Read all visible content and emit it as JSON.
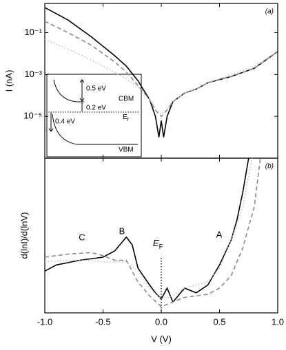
{
  "chart_data": [
    {
      "type": "line",
      "panel_label": "(a)",
      "ylabel": "I (nA)",
      "log_y": true,
      "xlim": [
        -1,
        1
      ],
      "ylim": [
        1e-07,
        2.5
      ],
      "yticks": [
        {
          "value": 0.1,
          "label": "10⁻¹"
        },
        {
          "value": 0.001,
          "label": "10⁻³"
        },
        {
          "value": 1e-05,
          "label": "10⁻⁵"
        }
      ],
      "x": [
        -1,
        -0.8,
        -0.6,
        -0.4,
        -0.3,
        -0.2,
        -0.1,
        -0.05,
        -0.02,
        0,
        0.02,
        0.05,
        0.1,
        0.2,
        0.3,
        0.4,
        0.6,
        0.8,
        1.0
      ],
      "series": [
        {
          "color": "#000000",
          "dash": "solid",
          "values": [
            1.6,
            0.4,
            0.063,
            0.0079,
            0.0025,
            0.0005,
            6.3e-05,
            1e-05,
            1e-06,
            6.3e-06,
            1e-06,
            1e-05,
            5e-05,
            0.00013,
            0.0002,
            0.0004,
            0.0008,
            0.002,
            0.0126
          ]
        },
        {
          "color": "#8a8a8a",
          "dash": "dashed",
          "values": [
            0.35,
            0.1,
            0.025,
            0.004,
            0.0013,
            0.0003,
            6.3e-05,
            2e-05,
            1.26e-05,
            1e-05,
            1.26e-05,
            2e-05,
            5e-05,
            0.00013,
            0.0002,
            0.0004,
            0.0008,
            0.002,
            0.0126
          ]
        },
        {
          "color": "#bdbdbd",
          "dash": "dotted",
          "values": [
            0.05,
            0.016,
            0.005,
            0.0013,
            0.00063,
            0.00025,
            6.3e-05,
            2.5e-05,
            1.6e-05,
            1.26e-05,
            1.6e-05,
            2.5e-05,
            5e-05,
            0.00013,
            0.0002,
            0.0004,
            0.001,
            0.0025,
            0.0126
          ]
        }
      ],
      "inset": {
        "gap_cbm": "0.5 eV",
        "cbm": "CBM",
        "gap_ef": "0.2 eV",
        "ef": {
          "text": "E",
          "sub": "f"
        },
        "gap_vbm": "0.4 eV",
        "vbm": "VBM"
      }
    },
    {
      "type": "line",
      "panel_label": "(b)",
      "ylabel": "d(lnI)/d(lnV)",
      "xlabel": "V (V)",
      "xlim": [
        -1,
        1
      ],
      "ylim": [
        0,
        10
      ],
      "xticks": [
        {
          "value": -1,
          "label": "-1.0"
        },
        -0.5,
        {
          "value": 0,
          "label": "0.0"
        },
        0.5,
        {
          "value": 1,
          "label": "1.0"
        }
      ],
      "series": [
        {
          "color": "#000000",
          "dash": "solid",
          "x": [
            -1,
            -0.9,
            -0.7,
            -0.5,
            -0.4,
            -0.3,
            -0.25,
            -0.2,
            -0.1,
            -0.05,
            0,
            0.05,
            0.1,
            0.2,
            0.3,
            0.4,
            0.5,
            0.6,
            0.65,
            0.7,
            0.75
          ],
          "values": [
            2.7,
            3.1,
            3.4,
            3.6,
            4.0,
            4.9,
            4.4,
            2.9,
            1.8,
            1.3,
            0.9,
            1.6,
            0.7,
            1.6,
            1.3,
            1.8,
            3.1,
            4.7,
            6.0,
            7.8,
            10.0
          ]
        },
        {
          "color": "#8a8a8a",
          "dash": "dashed",
          "x": [
            -1,
            -0.8,
            -0.6,
            -0.5,
            -0.4,
            -0.3,
            -0.2,
            -0.1,
            0,
            0.1,
            0.2,
            0.3,
            0.4,
            0.5,
            0.6,
            0.7,
            0.8,
            0.85
          ],
          "values": [
            3.6,
            3.8,
            3.9,
            3.7,
            3.4,
            3.4,
            2.0,
            1.1,
            0.4,
            0.7,
            1.0,
            1.1,
            1.2,
            1.6,
            2.4,
            4.2,
            6.9,
            10.0
          ]
        },
        {
          "color": "#bdbdbd",
          "dash": "dotted",
          "x": [
            -1,
            -0.8,
            -0.6,
            -0.5,
            -0.4,
            -0.3,
            -0.2,
            -0.1,
            0,
            0.1,
            0.2,
            0.3,
            0.4,
            0.5,
            0.6,
            0.7,
            0.78
          ],
          "values": [
            3.3,
            3.4,
            3.4,
            3.3,
            3.3,
            3.3,
            2.7,
            1.6,
            0.9,
            1.1,
            1.6,
            1.8,
            2.0,
            2.9,
            4.7,
            6.9,
            10.0
          ]
        }
      ],
      "annotations": [
        "C",
        "B",
        "A"
      ],
      "fermi_label": {
        "text": "E",
        "sub": "F"
      }
    }
  ]
}
